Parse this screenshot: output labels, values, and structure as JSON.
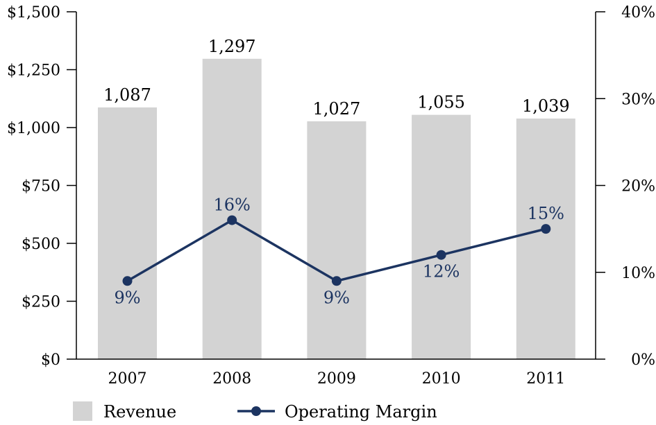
{
  "chart_data": {
    "type": "bar+line",
    "categories": [
      "2007",
      "2008",
      "2009",
      "2010",
      "2011"
    ],
    "series": [
      {
        "name": "Revenue",
        "type": "bar",
        "axis": "left",
        "values": [
          1087,
          1297,
          1027,
          1055,
          1039
        ],
        "labels": [
          "1,087",
          "1,297",
          "1,027",
          "1,055",
          "1,039"
        ]
      },
      {
        "name": "Operating Margin",
        "type": "line",
        "axis": "right",
        "values": [
          9,
          16,
          9,
          12,
          15
        ],
        "labels": [
          "9%",
          "16%",
          "9%",
          "12%",
          "15%"
        ]
      }
    ],
    "left_axis": {
      "ylim": [
        0,
        1500
      ],
      "ticks": [
        "$0",
        "$250",
        "$500",
        "$750",
        "$1,000",
        "$1,250",
        "$1,500"
      ]
    },
    "right_axis": {
      "ylim": [
        0,
        40
      ],
      "ticks": [
        "0%",
        "10%",
        "20%",
        "30%",
        "40%"
      ]
    },
    "legend": {
      "placement": "bottom",
      "items": [
        "Revenue",
        "Operating Margin"
      ]
    },
    "grid": false,
    "colors": {
      "bar": "#d3d3d3",
      "line": "#1c3461",
      "label_margin": "#1c3461"
    }
  }
}
